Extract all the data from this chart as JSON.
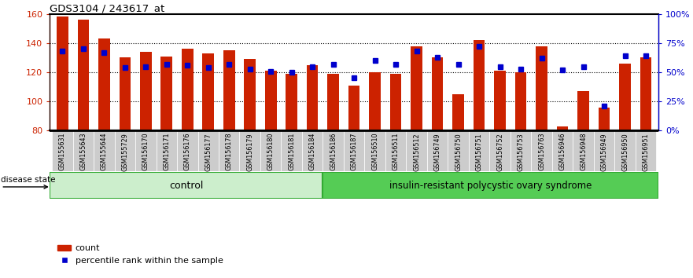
{
  "title": "GDS3104 / 243617_at",
  "samples": [
    "GSM155631",
    "GSM155643",
    "GSM155644",
    "GSM155729",
    "GSM156170",
    "GSM156171",
    "GSM156176",
    "GSM156177",
    "GSM156178",
    "GSM156179",
    "GSM156180",
    "GSM156181",
    "GSM156184",
    "GSM156186",
    "GSM156187",
    "GSM156510",
    "GSM156511",
    "GSM156512",
    "GSM156749",
    "GSM156750",
    "GSM156751",
    "GSM156752",
    "GSM156753",
    "GSM156763",
    "GSM156946",
    "GSM156948",
    "GSM156949",
    "GSM156950",
    "GSM156951"
  ],
  "count_values": [
    158,
    156,
    143,
    130,
    134,
    131,
    136,
    133,
    135,
    129,
    121,
    119,
    125,
    119,
    111,
    120,
    119,
    138,
    130,
    105,
    142,
    121,
    120,
    138,
    83,
    107,
    96,
    126,
    130
  ],
  "percentile_values": [
    68,
    70,
    67,
    54,
    55,
    57,
    56,
    54,
    57,
    53,
    51,
    50,
    55,
    57,
    45,
    60,
    57,
    68,
    63,
    57,
    72,
    55,
    53,
    62,
    52,
    55,
    21,
    64,
    64
  ],
  "n_control": 13,
  "control_label": "control",
  "disease_label": "insulin-resistant polycystic ovary syndrome",
  "ylim_left": [
    80,
    160
  ],
  "yticks_left": [
    80,
    100,
    120,
    140,
    160
  ],
  "ylim_right": [
    0,
    100
  ],
  "yticks_right": [
    0,
    25,
    50,
    75,
    100
  ],
  "yticklabels_right": [
    "0%",
    "25%",
    "50%",
    "75%",
    "100%"
  ],
  "bar_color": "#CC2200",
  "dot_color": "#0000CC",
  "bar_width": 0.55,
  "left_axis_color": "#CC2200",
  "right_axis_color": "#0000CC",
  "control_color_light": "#CCEECC",
  "control_color_dark": "#55CC55",
  "grid_yticks": [
    100,
    120,
    140
  ],
  "tick_bg_color": "#CCCCCC",
  "disease_state_text": "disease state",
  "legend_count": "count",
  "legend_pct": "percentile rank within the sample"
}
